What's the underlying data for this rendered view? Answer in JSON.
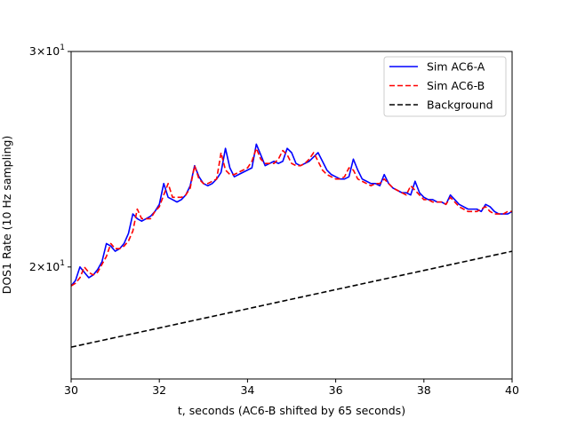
{
  "chart_data": {
    "type": "line",
    "xlabel": "t, seconds (AC6-B shifted by 65 seconds)",
    "ylabel": "DOS1 Rate (10 Hz sampling)",
    "xlim": [
      30,
      40
    ],
    "ylim": [
      16.2,
      30
    ],
    "yscale": "log",
    "grid": false,
    "legend_position": "top-right",
    "x_ticks": [
      "30",
      "32",
      "34",
      "36",
      "38",
      "40"
    ],
    "y_ticks": [
      {
        "value": 20,
        "base": "2",
        "times": "×",
        "power": "10",
        "exp": "1"
      },
      {
        "value": 30,
        "base": "3",
        "times": "×",
        "power": "10",
        "exp": "1"
      }
    ],
    "series": [
      {
        "name": "Sim AC6-A",
        "color": "#0000ff",
        "dash": "solid",
        "x": [
          30.0,
          30.1,
          30.2,
          30.3,
          30.4,
          30.5,
          30.6,
          30.7,
          30.8,
          30.9,
          31.0,
          31.1,
          31.2,
          31.3,
          31.4,
          31.5,
          31.6,
          31.7,
          31.8,
          31.9,
          32.0,
          32.1,
          32.2,
          32.3,
          32.4,
          32.5,
          32.6,
          32.7,
          32.8,
          32.9,
          33.0,
          33.1,
          33.2,
          33.3,
          33.4,
          33.5,
          33.6,
          33.7,
          33.8,
          33.9,
          34.0,
          34.1,
          34.2,
          34.3,
          34.4,
          34.5,
          34.6,
          34.7,
          34.8,
          34.9,
          35.0,
          35.1,
          35.2,
          35.3,
          35.4,
          35.5,
          35.6,
          35.7,
          35.8,
          35.9,
          36.0,
          36.1,
          36.2,
          36.3,
          36.4,
          36.5,
          36.6,
          36.7,
          36.8,
          36.9,
          37.0,
          37.1,
          37.2,
          37.3,
          37.4,
          37.5,
          37.6,
          37.7,
          37.8,
          37.9,
          38.0,
          38.1,
          38.2,
          38.3,
          38.4,
          38.5,
          38.6,
          38.7,
          38.8,
          38.9,
          39.0,
          39.1,
          39.2,
          39.3,
          39.4,
          39.5,
          39.6,
          39.7,
          39.8,
          39.9,
          40.0
        ],
        "y": [
          19.3,
          19.5,
          20.0,
          19.8,
          19.6,
          19.7,
          19.9,
          20.2,
          20.9,
          20.8,
          20.6,
          20.7,
          20.9,
          21.3,
          22.1,
          21.9,
          21.8,
          21.9,
          22.0,
          22.2,
          22.5,
          23.4,
          22.8,
          22.7,
          22.6,
          22.7,
          22.9,
          23.3,
          24.2,
          23.7,
          23.4,
          23.3,
          23.4,
          23.6,
          23.9,
          25.0,
          24.1,
          23.7,
          23.8,
          23.9,
          24.0,
          24.1,
          25.2,
          24.7,
          24.2,
          24.3,
          24.4,
          24.3,
          24.4,
          25.0,
          24.8,
          24.3,
          24.2,
          24.3,
          24.4,
          24.6,
          24.8,
          24.4,
          24.0,
          23.8,
          23.7,
          23.6,
          23.6,
          23.7,
          24.5,
          24.0,
          23.6,
          23.5,
          23.4,
          23.4,
          23.3,
          23.8,
          23.4,
          23.2,
          23.1,
          23.0,
          23.0,
          22.9,
          23.5,
          23.0,
          22.8,
          22.7,
          22.7,
          22.6,
          22.6,
          22.5,
          22.9,
          22.7,
          22.5,
          22.4,
          22.3,
          22.3,
          22.3,
          22.2,
          22.5,
          22.4,
          22.2,
          22.1,
          22.1,
          22.1,
          22.2
        ]
      },
      {
        "name": "Sim AC6-B",
        "color": "#ff0000",
        "dash": "dashed",
        "x": [
          30.0,
          30.1,
          30.2,
          30.3,
          30.4,
          30.5,
          30.6,
          30.7,
          30.8,
          30.9,
          31.0,
          31.1,
          31.2,
          31.3,
          31.4,
          31.5,
          31.6,
          31.7,
          31.8,
          31.9,
          32.0,
          32.1,
          32.2,
          32.3,
          32.4,
          32.5,
          32.6,
          32.7,
          32.8,
          32.9,
          33.0,
          33.1,
          33.2,
          33.3,
          33.4,
          33.5,
          33.6,
          33.7,
          33.8,
          33.9,
          34.0,
          34.1,
          34.2,
          34.3,
          34.4,
          34.5,
          34.6,
          34.7,
          34.8,
          34.9,
          35.0,
          35.1,
          35.2,
          35.3,
          35.4,
          35.5,
          35.6,
          35.7,
          35.8,
          35.9,
          36.0,
          36.1,
          36.2,
          36.3,
          36.4,
          36.5,
          36.6,
          36.7,
          36.8,
          36.9,
          37.0,
          37.1,
          37.2,
          37.3,
          37.4,
          37.5,
          37.6,
          37.7,
          37.8,
          37.9,
          38.0,
          38.1,
          38.2,
          38.3,
          38.4,
          38.5,
          38.6,
          38.7,
          38.8,
          38.9,
          39.0,
          39.1,
          39.2,
          39.3,
          39.4,
          39.5,
          39.6,
          39.7,
          39.8,
          39.9,
          40.0
        ],
        "y": [
          19.3,
          19.4,
          19.6,
          20.0,
          19.8,
          19.7,
          19.8,
          20.1,
          20.4,
          20.9,
          20.7,
          20.7,
          20.8,
          21.0,
          21.4,
          22.3,
          21.9,
          21.9,
          21.9,
          22.2,
          22.4,
          22.9,
          23.4,
          22.8,
          22.8,
          22.8,
          22.9,
          23.2,
          24.2,
          23.6,
          23.4,
          23.4,
          23.5,
          23.6,
          24.8,
          24.0,
          23.8,
          23.8,
          23.9,
          24.0,
          24.1,
          24.4,
          25.0,
          24.5,
          24.3,
          24.3,
          24.3,
          24.5,
          24.9,
          24.7,
          24.3,
          24.2,
          24.2,
          24.3,
          24.5,
          24.8,
          24.4,
          24.0,
          23.8,
          23.7,
          23.6,
          23.6,
          23.7,
          24.1,
          24.0,
          23.6,
          23.5,
          23.4,
          23.3,
          23.4,
          23.4,
          23.6,
          23.4,
          23.2,
          23.1,
          23.0,
          22.9,
          23.3,
          23.1,
          22.9,
          22.7,
          22.7,
          22.6,
          22.6,
          22.6,
          22.5,
          22.8,
          22.6,
          22.4,
          22.3,
          22.2,
          22.2,
          22.2,
          22.3,
          22.4,
          22.2,
          22.1,
          22.1,
          22.1,
          22.2,
          22.2
        ]
      },
      {
        "name": "Background",
        "color": "#000000",
        "dash": "dashed",
        "x": [
          30,
          40
        ],
        "y": [
          17.2,
          20.6
        ]
      }
    ]
  }
}
